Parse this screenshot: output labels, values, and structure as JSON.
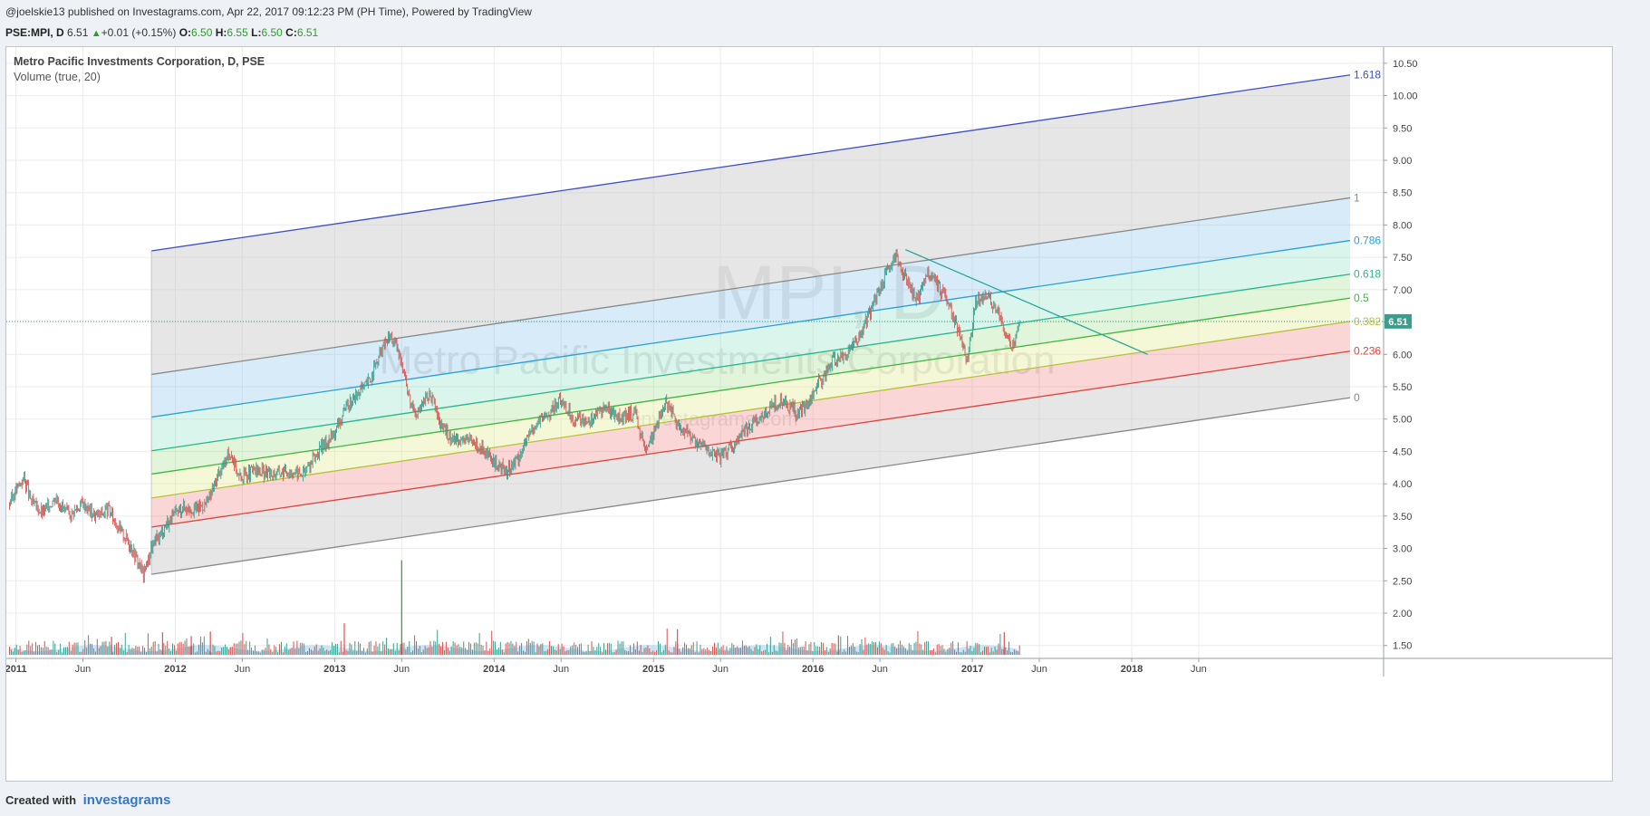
{
  "header": {
    "publish_line": "@joelskie13 published on Investagrams.com, Apr 22, 2017 09:12:23 PM (PH Time), Powered by TradingView",
    "symbol": "PSE:MPI, D",
    "last": "6.51",
    "change": "+0.01 (+0.15%)",
    "o_label": "O:",
    "o_value": "6.50",
    "h_label": "H:",
    "h_value": "6.55",
    "l_label": "L:",
    "l_value": "6.50",
    "c_label": "C:",
    "c_value": "6.51"
  },
  "legend": {
    "title": "Metro Pacific Investments Corporation, D, PSE",
    "indicator": "Volume (true, 20)"
  },
  "footer": {
    "created_with": "Created with",
    "brand": "investagrams"
  },
  "colors": {
    "up": "#3a9e8f",
    "down": "#d9534f",
    "fib_1618": "#3c4fc0",
    "fib_0786": "#2b9fd6",
    "fib_0618": "#26b58f",
    "fib_05": "#3fb53f",
    "fib_0382": "#b5c23a",
    "fib_0236": "#d9453d",
    "fib_edge": "#888888",
    "last_price_bg": "#3a9e8f"
  },
  "chart_data": {
    "type": "candlestick",
    "watermark_symbol": "MPI, D",
    "watermark_name": "Metro Pacific Investments Corporation",
    "watermark_site": "investagrams.com",
    "y_ticks": [
      "10.50",
      "10.00",
      "9.50",
      "9.00",
      "8.50",
      "8.00",
      "7.50",
      "7.00",
      "6.50",
      "6.00",
      "5.50",
      "5.00",
      "4.50",
      "4.00",
      "3.50",
      "3.00",
      "2.50",
      "2.00",
      "1.50"
    ],
    "ylim": [
      1.3,
      10.75
    ],
    "x_ticks": [
      {
        "label": "2011",
        "year": 2011.0
      },
      {
        "label": "Jun",
        "year": 2011.42
      },
      {
        "label": "2012",
        "year": 2012.0
      },
      {
        "label": "Jun",
        "year": 2012.42
      },
      {
        "label": "2013",
        "year": 2013.0
      },
      {
        "label": "Jun",
        "year": 2013.42
      },
      {
        "label": "2014",
        "year": 2014.0
      },
      {
        "label": "Jun",
        "year": 2014.42
      },
      {
        "label": "2015",
        "year": 2015.0
      },
      {
        "label": "Jun",
        "year": 2015.42
      },
      {
        "label": "2016",
        "year": 2016.0
      },
      {
        "label": "Jun",
        "year": 2016.42
      },
      {
        "label": "2017",
        "year": 2017.0
      },
      {
        "label": "Jun",
        "year": 2017.42
      },
      {
        "label": "2018",
        "year": 2018.0
      },
      {
        "label": "Jun",
        "year": 2018.42
      }
    ],
    "xlim": [
      2010.94,
      2019.58
    ],
    "last_price": 6.51,
    "last_price_label": "6.51",
    "price_path": [
      [
        2010.96,
        3.7
      ],
      [
        2011.0,
        3.9
      ],
      [
        2011.05,
        4.1
      ],
      [
        2011.1,
        3.7
      ],
      [
        2011.17,
        3.55
      ],
      [
        2011.25,
        3.8
      ],
      [
        2011.33,
        3.5
      ],
      [
        2011.42,
        3.7
      ],
      [
        2011.5,
        3.5
      ],
      [
        2011.58,
        3.6
      ],
      [
        2011.65,
        3.3
      ],
      [
        2011.72,
        3.05
      ],
      [
        2011.8,
        2.6
      ],
      [
        2011.85,
        3.0
      ],
      [
        2011.95,
        3.4
      ],
      [
        2012.05,
        3.65
      ],
      [
        2012.12,
        3.6
      ],
      [
        2012.2,
        3.7
      ],
      [
        2012.28,
        4.2
      ],
      [
        2012.35,
        4.5
      ],
      [
        2012.4,
        4.1
      ],
      [
        2012.5,
        4.2
      ],
      [
        2012.6,
        4.15
      ],
      [
        2012.7,
        4.2
      ],
      [
        2012.8,
        4.15
      ],
      [
        2012.9,
        4.5
      ],
      [
        2013.0,
        4.8
      ],
      [
        2013.08,
        5.2
      ],
      [
        2013.15,
        5.4
      ],
      [
        2013.22,
        5.6
      ],
      [
        2013.3,
        6.1
      ],
      [
        2013.35,
        6.3
      ],
      [
        2013.42,
        5.9
      ],
      [
        2013.47,
        5.3
      ],
      [
        2013.52,
        5.1
      ],
      [
        2013.6,
        5.4
      ],
      [
        2013.65,
        5.0
      ],
      [
        2013.72,
        4.7
      ],
      [
        2013.8,
        4.7
      ],
      [
        2013.9,
        4.6
      ],
      [
        2014.0,
        4.3
      ],
      [
        2014.08,
        4.2
      ],
      [
        2014.15,
        4.4
      ],
      [
        2014.25,
        4.9
      ],
      [
        2014.35,
        5.1
      ],
      [
        2014.42,
        5.3
      ],
      [
        2014.5,
        5.0
      ],
      [
        2014.6,
        5.0
      ],
      [
        2014.7,
        5.2
      ],
      [
        2014.8,
        5.0
      ],
      [
        2014.88,
        5.1
      ],
      [
        2014.95,
        4.5
      ],
      [
        2015.0,
        4.8
      ],
      [
        2015.08,
        5.3
      ],
      [
        2015.15,
        4.9
      ],
      [
        2015.25,
        4.7
      ],
      [
        2015.35,
        4.5
      ],
      [
        2015.42,
        4.4
      ],
      [
        2015.5,
        4.6
      ],
      [
        2015.6,
        4.9
      ],
      [
        2015.7,
        5.1
      ],
      [
        2015.8,
        5.3
      ],
      [
        2015.9,
        5.1
      ],
      [
        2015.95,
        5.2
      ],
      [
        2016.05,
        5.6
      ],
      [
        2016.12,
        5.9
      ],
      [
        2016.2,
        6.0
      ],
      [
        2016.3,
        6.3
      ],
      [
        2016.38,
        6.8
      ],
      [
        2016.45,
        7.2
      ],
      [
        2016.52,
        7.5
      ],
      [
        2016.58,
        7.2
      ],
      [
        2016.65,
        6.8
      ],
      [
        2016.72,
        7.3
      ],
      [
        2016.8,
        7.0
      ],
      [
        2016.88,
        6.6
      ],
      [
        2016.93,
        6.2
      ],
      [
        2016.97,
        5.9
      ],
      [
        2017.02,
        6.8
      ],
      [
        2017.1,
        6.9
      ],
      [
        2017.17,
        6.6
      ],
      [
        2017.22,
        6.2
      ],
      [
        2017.26,
        6.1
      ],
      [
        2017.3,
        6.5
      ]
    ],
    "volume_ylim": [
      0,
      7
    ],
    "volume_spikes": [
      {
        "year": 2011.6,
        "value": 2.4
      },
      {
        "year": 2011.92,
        "value": 3.0
      },
      {
        "year": 2012.1,
        "value": 2.5
      },
      {
        "year": 2012.22,
        "value": 3.1
      },
      {
        "year": 2013.06,
        "value": 4.2
      },
      {
        "year": 2013.42,
        "value": 12.6
      },
      {
        "year": 2015.15,
        "value": 3.4
      },
      {
        "year": 2016.16,
        "value": 2.6
      },
      {
        "year": 2017.2,
        "value": 3.0
      }
    ],
    "fib_channel": {
      "anchor": {
        "year": 2011.85,
        "price": 2.6
      },
      "end_year": 2019.37,
      "edge_slope": 0.36,
      "levels": [
        {
          "level": 0,
          "label": "0",
          "value_at_anchor": 2.6,
          "end_value": 5.33,
          "color_key": "fib_edge"
        },
        {
          "level": 0.236,
          "label": "0.236",
          "value_at_anchor": 3.33,
          "end_value": 6.05,
          "color_key": "fib_0236"
        },
        {
          "level": 0.382,
          "label": "0.382",
          "value_at_anchor": 3.78,
          "end_value": 6.51,
          "color_key": "fib_0382"
        },
        {
          "level": 0.5,
          "label": "0.5",
          "value_at_anchor": 4.15,
          "end_value": 6.87,
          "color_key": "fib_05"
        },
        {
          "level": 0.618,
          "label": "0.618",
          "value_at_anchor": 4.51,
          "end_value": 7.24,
          "color_key": "fib_0618"
        },
        {
          "level": 0.786,
          "label": "0.786",
          "value_at_anchor": 5.03,
          "end_value": 7.76,
          "color_key": "fib_0786"
        },
        {
          "level": 1,
          "label": "1",
          "value_at_anchor": 5.69,
          "end_value": 8.42,
          "color_key": "fib_edge"
        },
        {
          "level": 1.618,
          "label": "1.618",
          "value_at_anchor": 7.6,
          "end_value": 10.32,
          "color_key": "fib_1618"
        }
      ]
    },
    "trendline": {
      "from": {
        "year": 2016.58,
        "price": 7.62
      },
      "to": {
        "year": 2018.1,
        "price": 6.0
      }
    }
  }
}
